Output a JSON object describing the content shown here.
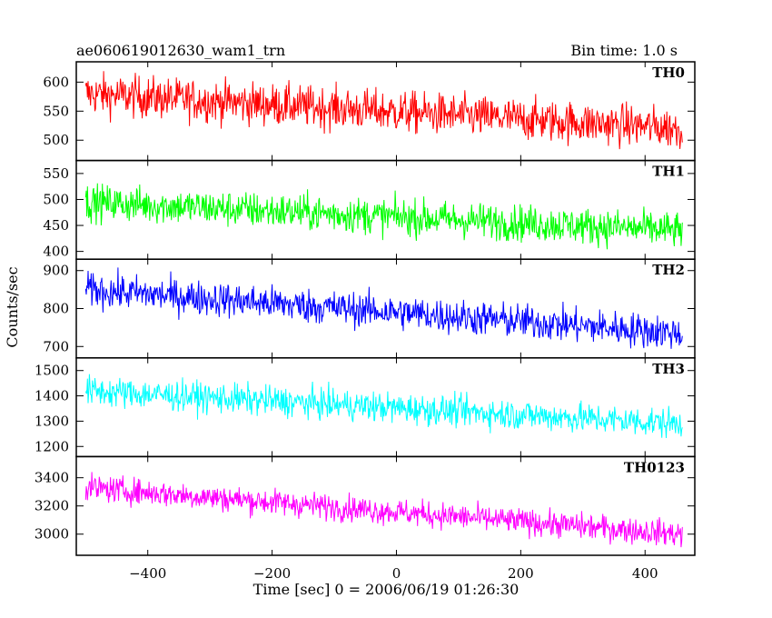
{
  "header": {
    "left": "ae060619012630_wam1_trn",
    "right": "Bin time: 1.0 s"
  },
  "axes": {
    "xlabel": "Time [sec] 0 = 2006/06/19 01:26:30",
    "ylabel": "Counts/sec",
    "x_ticks": [
      -400,
      -200,
      0,
      200,
      400
    ]
  },
  "chart_data": {
    "type": "line",
    "x_range": [
      -500,
      460
    ],
    "x_step": 1,
    "xlim": [
      -515,
      480
    ],
    "series": [
      {
        "name": "TH0",
        "color": "#ff0000",
        "ylim": [
          465,
          635
        ],
        "yticks": [
          500,
          550,
          600
        ],
        "start": 580,
        "end": 520,
        "amp": 33
      },
      {
        "name": "TH1",
        "color": "#00ff00",
        "ylim": [
          385,
          575
        ],
        "yticks": [
          400,
          450,
          500,
          550
        ],
        "start": 495,
        "end": 440,
        "amp": 32
      },
      {
        "name": "TH2",
        "color": "#0000ff",
        "ylim": [
          670,
          930
        ],
        "yticks": [
          700,
          800,
          900
        ],
        "start": 850,
        "end": 735,
        "amp": 42
      },
      {
        "name": "TH3",
        "color": "#00ffff",
        "ylim": [
          1160,
          1550
        ],
        "yticks": [
          1200,
          1300,
          1400,
          1500
        ],
        "start": 1420,
        "end": 1290,
        "amp": 55
      },
      {
        "name": "TH0123",
        "color": "#ff00ff",
        "ylim": [
          2850,
          3550
        ],
        "yticks": [
          3000,
          3200,
          3400
        ],
        "start": 3330,
        "end": 3000,
        "amp": 85
      }
    ]
  }
}
